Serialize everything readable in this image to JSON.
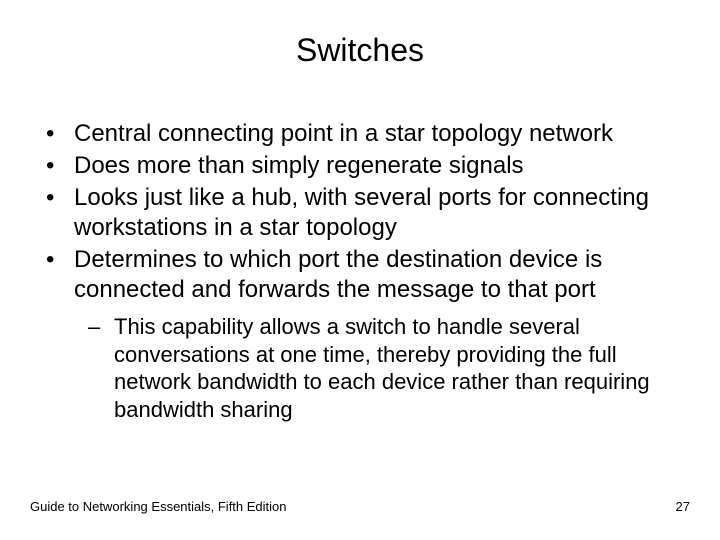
{
  "title": "Switches",
  "bullets": {
    "b0": "Central connecting point in a star topology network",
    "b1": "Does more than simply regenerate signals",
    "b2": "Looks just like a hub, with several ports for connecting workstations in a star topology",
    "b3": "Determines to which port the destination device is connected and forwards the message to that port"
  },
  "sub_bullets": {
    "s0": "This capability allows a switch to handle several conversations at one time, thereby providing the full network bandwidth to each device rather than requiring bandwidth sharing"
  },
  "footer": {
    "source": "Guide to Networking Essentials, Fifth Edition",
    "page": "27"
  },
  "colors": {
    "background": "#ffffff",
    "text": "#000000"
  },
  "typography": {
    "title_fontsize": 32,
    "bullet_fontsize": 24,
    "sub_bullet_fontsize": 22,
    "footer_fontsize": 13,
    "font_family": "Arial"
  }
}
